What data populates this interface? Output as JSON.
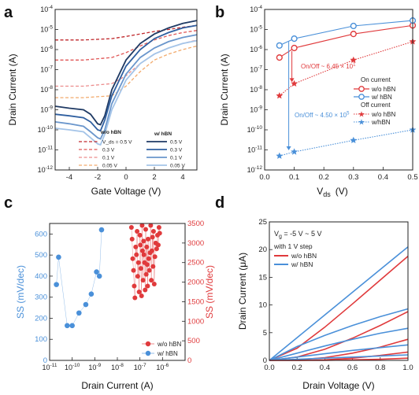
{
  "panels": {
    "a": {
      "letter": "a"
    },
    "b": {
      "letter": "b"
    },
    "c": {
      "letter": "c"
    },
    "d": {
      "letter": "d"
    }
  },
  "colors": {
    "red": "#e03a3c",
    "blue": "#4a90d9",
    "navy": "#1f3a64",
    "axis": "#222222"
  },
  "chart_data": [
    {
      "panel": "a",
      "type": "line",
      "xlabel": "Gate Voltage (V)",
      "ylabel": "Drain Current (A)",
      "yscale": "log",
      "xlim": [
        -5,
        5
      ],
      "ylim": [
        1e-12,
        0.0001
      ],
      "xticks": [
        "-4",
        "-2",
        "0",
        "2",
        "4"
      ],
      "yticks": [
        "10^-12",
        "10^-11",
        "10^-10",
        "10^-9",
        "10^-8",
        "10^-7",
        "10^-6",
        "10^-5",
        "10^-4"
      ],
      "legend": {
        "placement": "bottom-center",
        "woTitle": "w/o hBN",
        "wTitle": "w/ hBN",
        "woEntries": [
          "V_ds = 0.5 V",
          "0.3 V",
          "0.1 V",
          "0.05 V"
        ],
        "wEntries": [
          "0.5 V",
          "0.3 V",
          "0.1 V",
          "0.05 V"
        ]
      },
      "series": [
        {
          "group": "w/o hBN",
          "vds": "0.5 V",
          "color": "#c0282c",
          "dashed": true,
          "x": [
            -5,
            -3,
            -1,
            0,
            1,
            2,
            3,
            4,
            5
          ],
          "y": [
            3e-06,
            3e-06,
            3.5e-06,
            4.5e-06,
            6e-06,
            8e-06,
            1e-05,
            1.3e-05,
            1.6e-05
          ]
        },
        {
          "group": "w/o hBN",
          "vds": "0.3 V",
          "color": "#e05555",
          "dashed": true,
          "x": [
            -5,
            -3,
            -1,
            0,
            1,
            2,
            3,
            4,
            5
          ],
          "y": [
            3e-07,
            3e-07,
            4e-07,
            7e-07,
            1.5e-06,
            3e-06,
            5e-06,
            7e-06,
            9e-06
          ]
        },
        {
          "group": "w/o hBN",
          "vds": "0.1 V",
          "color": "#ec8c8c",
          "dashed": true,
          "x": [
            -5,
            -3,
            -1,
            0,
            1,
            2,
            3,
            4,
            5
          ],
          "y": [
            1.5e-08,
            1.5e-08,
            2e-08,
            5e-08,
            2e-07,
            6e-07,
            1.2e-06,
            2e-06,
            3e-06
          ]
        },
        {
          "group": "w/o hBN",
          "vds": "0.05 V",
          "color": "#f2aa6c",
          "dashed": true,
          "x": [
            -5,
            -3,
            -1,
            0,
            1,
            2,
            3,
            4,
            5
          ],
          "y": [
            4e-09,
            4e-09,
            5e-09,
            1.5e-08,
            8e-08,
            3e-07,
            6e-07,
            1e-06,
            1.5e-06
          ]
        },
        {
          "group": "w/ hBN",
          "vds": "0.5 V",
          "color": "#1f3a64",
          "dashed": false,
          "x": [
            -5,
            -4,
            -3,
            -2.5,
            -2,
            -1.8,
            -1.5,
            -1,
            0,
            1,
            2,
            3,
            4,
            5
          ],
          "y": [
            1.5e-09,
            1.2e-09,
            1e-09,
            6e-10,
            2e-10,
            1.8e-10,
            5e-10,
            1e-08,
            3e-07,
            2e-06,
            6e-06,
            1.2e-05,
            2e-05,
            2.8e-05
          ]
        },
        {
          "group": "w/ hBN",
          "vds": "0.3 V",
          "color": "#2f5fa0",
          "dashed": false,
          "x": [
            -5,
            -4,
            -3,
            -2.5,
            -2,
            -1.8,
            -1.5,
            -1,
            0,
            1,
            2,
            3,
            4,
            5
          ],
          "y": [
            6e-10,
            5e-10,
            4e-10,
            2.5e-10,
            1e-10,
            9e-11,
            3e-10,
            5e-09,
            1.5e-07,
            1e-06,
            3.5e-06,
            7e-06,
            1.2e-05,
            1.6e-05
          ]
        },
        {
          "group": "w/ hBN",
          "vds": "0.1 V",
          "color": "#6a96cc",
          "dashed": false,
          "x": [
            -5,
            -4,
            -3,
            -2.5,
            -2,
            -1.8,
            -1.5,
            -1,
            0,
            1,
            2,
            3,
            4,
            5
          ],
          "y": [
            2.5e-10,
            2e-10,
            1.5e-10,
            8e-11,
            4e-11,
            3.5e-11,
            1e-10,
            2e-09,
            6e-08,
            4e-07,
            1.2e-06,
            2.5e-06,
            4e-06,
            5.5e-06
          ]
        },
        {
          "group": "w/ hBN",
          "vds": "0.05 V",
          "color": "#a4c4e8",
          "dashed": false,
          "x": [
            -5,
            -4,
            -3,
            -2.5,
            -2,
            -1.8,
            -1.5,
            -1,
            0,
            1,
            2,
            3,
            4,
            5
          ],
          "y": [
            1.2e-10,
            1e-10,
            8e-11,
            4e-11,
            2e-11,
            1.8e-11,
            6e-11,
            1e-09,
            3e-08,
            2e-07,
            6e-07,
            1.2e-06,
            2e-06,
            2.8e-06
          ]
        }
      ]
    },
    {
      "panel": "b",
      "type": "scatter",
      "xlabel": "V",
      "xlabel_sub": "ds",
      "xlabel_unit": "(V)",
      "ylabel": "Drain Current (A)",
      "yscale": "log",
      "xlim": [
        0,
        0.5
      ],
      "ylim": [
        1e-12,
        0.0001
      ],
      "xticks": [
        "0.0",
        "0.1",
        "0.2",
        "0.3",
        "0.4",
        "0.5"
      ],
      "yticks": [
        "10^-12",
        "10^-11",
        "10^-10",
        "10^-9",
        "10^-8",
        "10^-7",
        "10^-6",
        "10^-5",
        "10^-4"
      ],
      "legend": {
        "placement": "right",
        "onTitle": "On current",
        "offTitle": "Off current",
        "entries": [
          "w/o hBN",
          "w/ hBN",
          "w/o hBN",
          "w/hBN"
        ]
      },
      "annotations": {
        "onoff_wo": "On/Off ~ 6.45 × 10",
        "onoff_wo_exp": "1",
        "onoff_w": "On/Off ~ 4.50 × 10",
        "onoff_w_exp": "5"
      },
      "series": [
        {
          "group": "On current",
          "name": "w/o hBN",
          "marker": "circle",
          "color": "#e03a3c",
          "x": [
            0.05,
            0.1,
            0.3,
            0.5
          ],
          "y": [
            4e-07,
            1.2e-06,
            6e-06,
            1.6e-05
          ]
        },
        {
          "group": "On current",
          "name": "w/ hBN",
          "marker": "circle",
          "color": "#4a90d9",
          "x": [
            0.05,
            0.1,
            0.3,
            0.5
          ],
          "y": [
            1.6e-06,
            3.5e-06,
            1.5e-05,
            2.8e-05
          ]
        },
        {
          "group": "Off current",
          "name": "w/o hBN",
          "marker": "star",
          "color": "#e03a3c",
          "x": [
            0.05,
            0.1,
            0.3,
            0.5
          ],
          "y": [
            5e-09,
            2e-08,
            3e-07,
            2.5e-06
          ]
        },
        {
          "group": "Off current",
          "name": "w/hBN",
          "marker": "star",
          "color": "#4a90d9",
          "x": [
            0.05,
            0.1,
            0.3,
            0.5
          ],
          "y": [
            5e-12,
            8e-12,
            3e-11,
            1e-10
          ]
        }
      ]
    },
    {
      "panel": "c",
      "type": "scatter",
      "xlabel": "Drain Current (A)",
      "ylabel_left": "SS (mV/dec)",
      "ylabel_right": "SS (mV/dec)",
      "xscale": "log",
      "xlim": [
        1e-11,
        1e-05
      ],
      "ylim_left": [
        0,
        650
      ],
      "ylim_right": [
        0,
        3500
      ],
      "xticks": [
        "10^-11",
        "10^-10",
        "10^-9",
        "10^-8",
        "10^-7",
        "10^-6"
      ],
      "yticks_left": [
        "0",
        "100",
        "200",
        "300",
        "400",
        "500",
        "600"
      ],
      "yticks_right": [
        "0",
        "500",
        "1000",
        "1500",
        "2000",
        "2500",
        "3000",
        "3500"
      ],
      "legend": {
        "placement": "bottom-right",
        "entries": [
          "w/o hBN",
          "w/ hBN"
        ]
      },
      "series": [
        {
          "name": "w/ hBN",
          "axis": "left",
          "color": "#4a90d9",
          "x": [
            2e-11,
            2.5e-11,
            6e-11,
            1e-10,
            2e-10,
            4e-10,
            7e-10,
            1.2e-09,
            1.6e-09,
            2e-09
          ],
          "y": [
            360,
            490,
            165,
            165,
            225,
            265,
            315,
            420,
            400,
            620
          ]
        },
        {
          "name": "w/o hBN",
          "axis": "right",
          "color": "#e03a3c",
          "x": [
            4.2e-08,
            4.5e-08,
            4.8e-08,
            5.2e-08,
            5.6e-08,
            6e-08,
            6.5e-08,
            7e-08,
            7.5e-08,
            8e-08,
            8.6e-08,
            9.2e-08,
            1e-07,
            1.05e-07,
            1.1e-07,
            1.18e-07,
            1.25e-07,
            1.3e-07,
            1.38e-07,
            1.45e-07,
            1.5e-07,
            1.6e-07,
            1.7e-07,
            1.8e-07,
            1.9e-07,
            2e-07,
            2.1e-07,
            2.2e-07,
            2.3e-07,
            2.45e-07,
            2.6e-07,
            2.8e-07,
            3e-07,
            3.2e-07,
            3.4e-07,
            3.6e-07,
            3.8e-07,
            4e-07,
            4.3e-07,
            4.6e-07,
            5e-07,
            5.5e-07,
            6e-07,
            6.5e-07,
            7e-07,
            7.5e-07
          ],
          "y": [
            3400,
            3100,
            2600,
            2300,
            1900,
            1600,
            2900,
            2700,
            3300,
            2150,
            2500,
            1750,
            3200,
            2950,
            2350,
            1650,
            3450,
            2800,
            2050,
            3050,
            2700,
            2500,
            1800,
            3350,
            2200,
            2900,
            2450,
            1900,
            3100,
            2600,
            2300,
            2750,
            3450,
            2050,
            2800,
            3150,
            2400,
            3300,
            1950,
            2650,
            3000,
            2850,
            3200,
            2950,
            3400,
            3250
          ]
        }
      ]
    },
    {
      "panel": "d",
      "type": "line",
      "xlabel": "Drain Voltage (V)",
      "ylabel": "Drain Current (μA)",
      "xlim": [
        0,
        1.0
      ],
      "ylim": [
        0,
        25
      ],
      "xticks": [
        "0.0",
        "0.2",
        "0.4",
        "0.6",
        "0.8",
        "1.0"
      ],
      "yticks": [
        "0",
        "5",
        "10",
        "15",
        "20",
        "25"
      ],
      "annotation_vg": "V",
      "annotation_vg_sub": "g",
      "annotation_vg_rest": " = -5 V ~ 5 V",
      "annotation_step": "with 1 V step",
      "legend": {
        "placement": "top-left",
        "entries": [
          "w/o hBN",
          "w/ hBN"
        ]
      },
      "x": [
        0.0,
        0.2,
        0.4,
        0.6,
        0.8,
        1.0
      ],
      "series": [
        {
          "name": "w/ hBN",
          "color": "#4a90d9",
          "vg": "5 V",
          "y": [
            0,
            4.1,
            8.2,
            12.3,
            16.4,
            20.5
          ]
        },
        {
          "name": "w/o hBN",
          "color": "#e03a3c",
          "vg": "5 V",
          "y": [
            0,
            2.2,
            6.0,
            10.2,
            14.5,
            18.8
          ]
        },
        {
          "name": "w/ hBN",
          "color": "#4a90d9",
          "vg": "4 V",
          "y": [
            0,
            2.5,
            4.5,
            6.3,
            7.9,
            9.3
          ]
        },
        {
          "name": "w/o hBN",
          "color": "#e03a3c",
          "vg": "4 V",
          "y": [
            0,
            0.6,
            2.0,
            4.0,
            6.3,
            8.8
          ]
        },
        {
          "name": "w/ hBN",
          "color": "#4a90d9",
          "vg": "3 V",
          "y": [
            0,
            1.3,
            2.6,
            3.8,
            4.9,
            5.8
          ]
        },
        {
          "name": "w/o hBN",
          "color": "#e03a3c",
          "vg": "3 V",
          "y": [
            0,
            0.1,
            0.5,
            1.3,
            2.4,
            3.8
          ]
        },
        {
          "name": "w/ hBN",
          "color": "#4a90d9",
          "vg": "2 V",
          "y": [
            0,
            0.6,
            1.2,
            1.8,
            2.3,
            2.8
          ]
        },
        {
          "name": "w/o hBN",
          "color": "#e03a3c",
          "vg": "2 V",
          "y": [
            0,
            0.0,
            0.1,
            0.4,
            0.9,
            1.5
          ]
        },
        {
          "name": "w/ hBN",
          "color": "#4a90d9",
          "vg": "1 V",
          "y": [
            0,
            0.2,
            0.4,
            0.6,
            0.8,
            1.0
          ]
        },
        {
          "name": "w/o hBN",
          "color": "#e03a3c",
          "vg": "1 V",
          "y": [
            0,
            0.0,
            0.0,
            0.1,
            0.2,
            0.4
          ]
        }
      ]
    }
  ]
}
